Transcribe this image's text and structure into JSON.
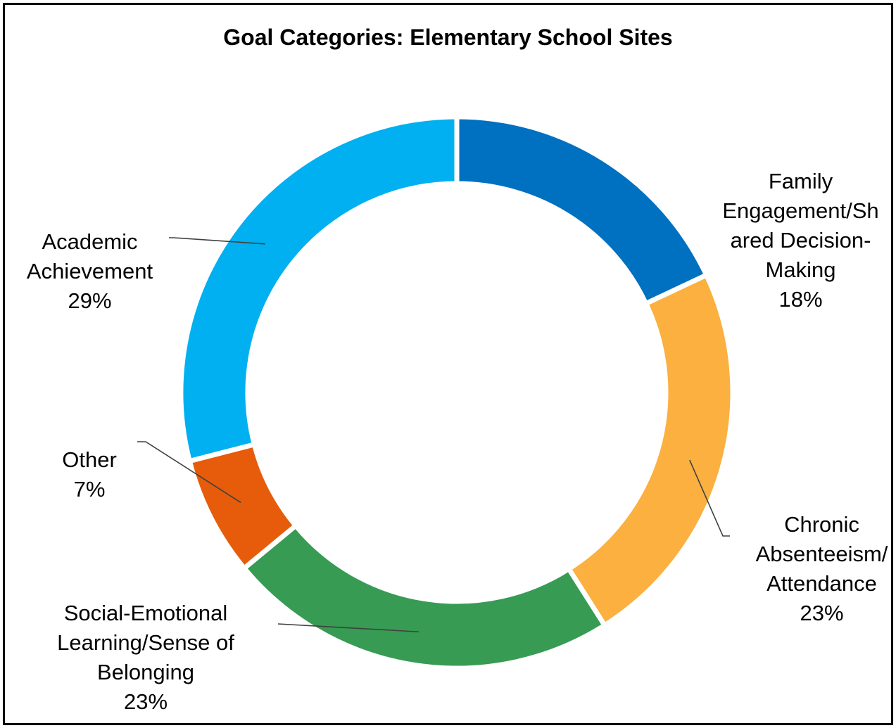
{
  "chart_data": {
    "type": "pie",
    "title": "Goal Categories: Elementary School Sites",
    "donut": true,
    "start_angle_deg": 0,
    "slices": [
      {
        "name": "Family\nEngagement/Sh\nared Decision-\nMaking",
        "value": 18,
        "label": "18%",
        "color": "#0070c0"
      },
      {
        "name": "Chronic\nAbsenteeism/\nAttendance",
        "value": 23,
        "label": "23%",
        "color": "#fbb040"
      },
      {
        "name": "Social-Emotional\nLearning/Sense of\nBelonging",
        "value": 23,
        "label": "23%",
        "color": "#379b54"
      },
      {
        "name": "Other",
        "value": 7,
        "label": "7%",
        "color": "#e65c0a"
      },
      {
        "name": "Academic\nAchievement",
        "value": 29,
        "label": "29%",
        "color": "#00b0f0"
      }
    ]
  }
}
